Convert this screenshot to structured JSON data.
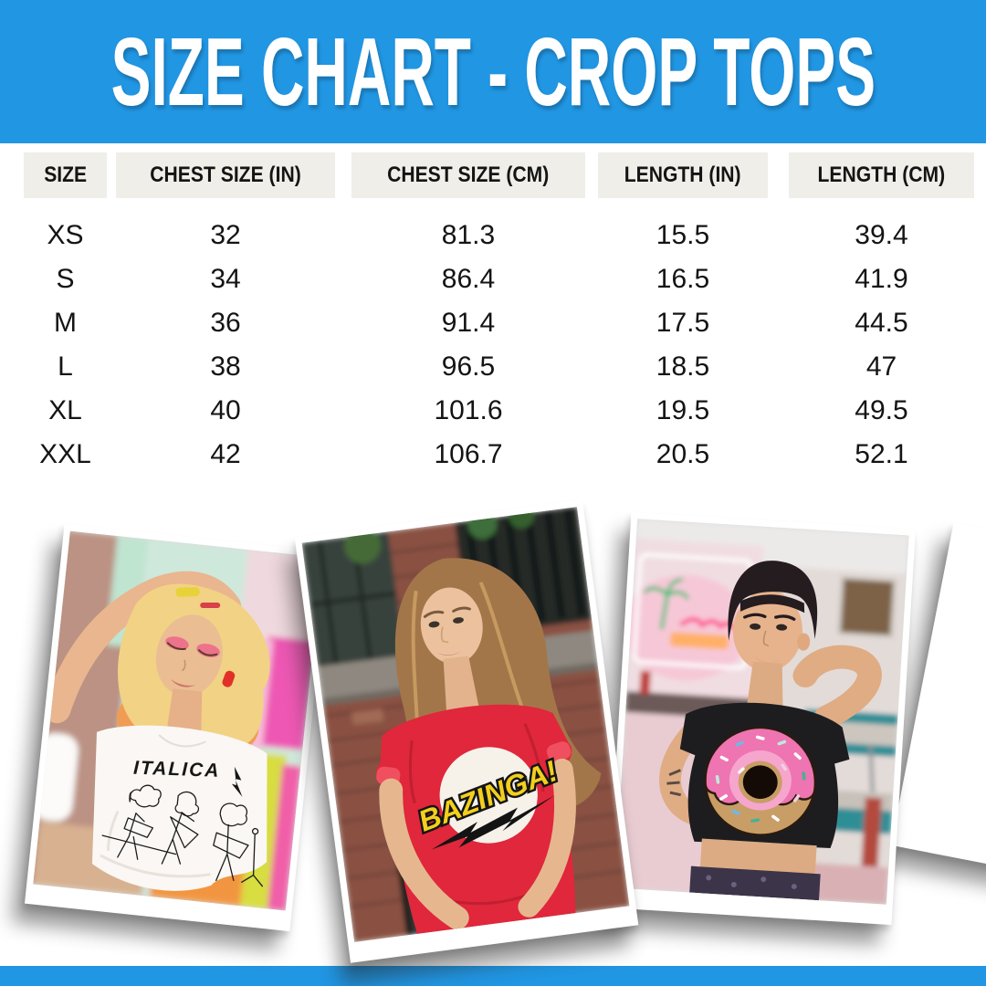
{
  "page": {
    "title": "SIZE CHART - CROP TOPS",
    "accent_blue": "#2196e3",
    "header_pill_bg": "#efeee9",
    "text_color": "#141414"
  },
  "table": {
    "columns": [
      "SIZE",
      "CHEST SIZE (IN)",
      "CHEST SIZE (CM)",
      "LENGTH (IN)",
      "LENGTH (CM)"
    ],
    "rows": [
      [
        "XS",
        "32",
        "81.3",
        "15.5",
        "39.4"
      ],
      [
        "S",
        "34",
        "86.4",
        "16.5",
        "41.9"
      ],
      [
        "M",
        "36",
        "91.4",
        "17.5",
        "44.5"
      ],
      [
        "L",
        "38",
        "96.5",
        "18.5",
        "47"
      ],
      [
        "XL",
        "40",
        "101.6",
        "19.5",
        "49.5"
      ],
      [
        "XXL",
        "42",
        "106.7",
        "20.5",
        "52.1"
      ]
    ]
  },
  "photos": [
    {
      "shirt_text": "ITALICA",
      "shirt_color": "#faf7f4",
      "description": "model in white ITALICA band crop top"
    },
    {
      "shirt_text": "BAZINGA!",
      "shirt_color": "#e0273b",
      "description": "model in red BAZINGA! crop top"
    },
    {
      "shirt_text": "",
      "shirt_color": "#1d1d20",
      "description": "model in black donut crop top"
    }
  ]
}
